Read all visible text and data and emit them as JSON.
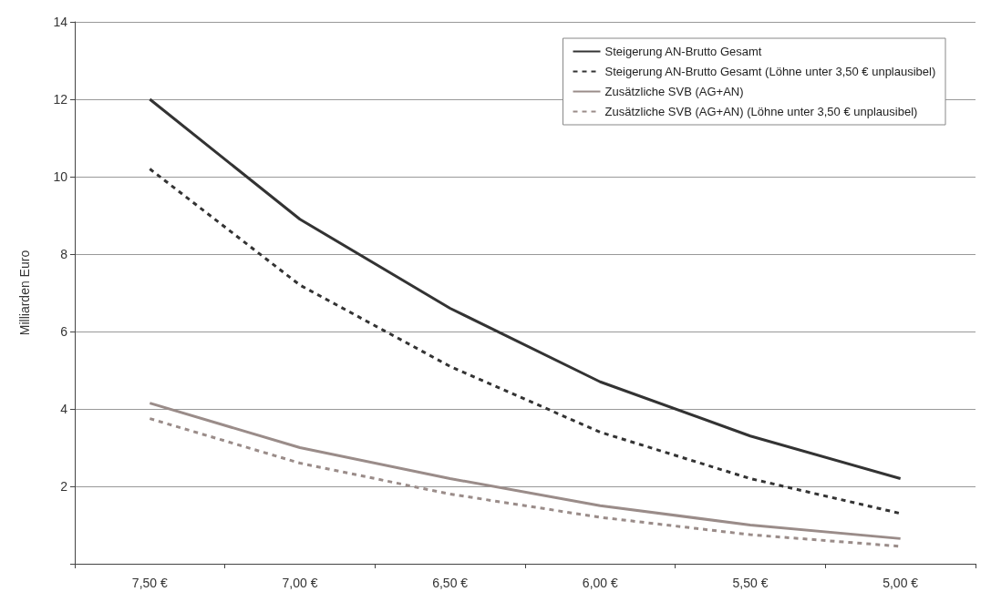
{
  "chart_data": {
    "type": "line",
    "ylabel": "Milliarden Euro",
    "categories": [
      "7,50 €",
      "7,00 €",
      "6,50 €",
      "6,00 €",
      "5,50 €",
      "5,00 €"
    ],
    "series": [
      {
        "name": "Steigerung AN-Brutto Gesamt",
        "color": "#333333",
        "line_style": "solid",
        "values": [
          12.0,
          8.9,
          6.6,
          4.7,
          3.3,
          2.2
        ]
      },
      {
        "name": "Steigerung AN-Brutto Gesamt (Löhne unter 3,50 € unplausibel)",
        "color": "#333333",
        "line_style": "dashed",
        "values": [
          10.2,
          7.2,
          5.1,
          3.4,
          2.2,
          1.3
        ]
      },
      {
        "name": "Zusätzliche SVB (AG+AN)",
        "color": "#9a8c89",
        "line_style": "solid",
        "values": [
          4.15,
          3.0,
          2.2,
          1.5,
          1.0,
          0.65
        ]
      },
      {
        "name": "Zusätzliche SVB (AG+AN) (Löhne unter 3,50 € unplausibel)",
        "color": "#9a8c89",
        "line_style": "dashed",
        "values": [
          3.75,
          2.6,
          1.8,
          1.2,
          0.75,
          0.45
        ]
      }
    ],
    "ylim": [
      0,
      14
    ],
    "yticks": [
      {
        "value": 0,
        "label": null
      },
      2,
      4,
      6,
      8,
      10,
      12,
      14
    ],
    "grid": "y",
    "legend": "top right",
    "marker": "none"
  }
}
